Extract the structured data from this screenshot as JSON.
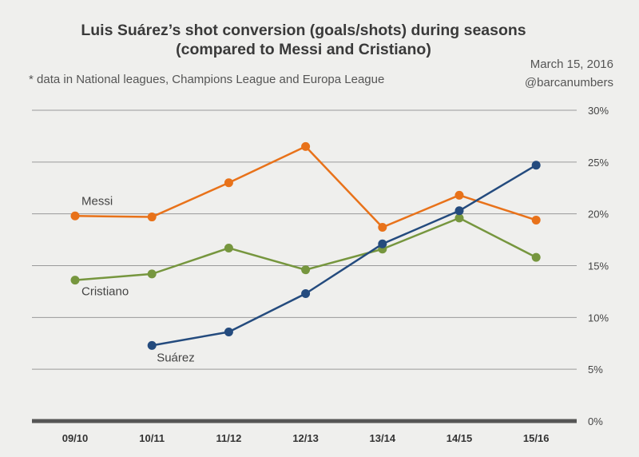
{
  "title_line1": "Luis Suárez’s shot conversion (goals/shots) during seasons",
  "title_line2": "(compared to Messi and Cristiano)",
  "note": "* data in National leagues, Champions League and Europa League",
  "date": "March 15, 2016",
  "handle": "@barcanumbers",
  "colors": {
    "messi": "#e8721a",
    "cristiano": "#76963e",
    "suarez": "#244b7e",
    "grid": "#9a9a9a",
    "baseline": "#555555"
  },
  "chart_data": {
    "type": "line",
    "title": "Luis Suárez’s shot conversion (goals/shots) during seasons (compared to Messi and Cristiano)",
    "categories": [
      "09/10",
      "10/11",
      "11/12",
      "12/13",
      "13/14",
      "14/15",
      "15/16"
    ],
    "ylim": [
      0,
      30
    ],
    "yticks": [
      0,
      5,
      10,
      15,
      20,
      25,
      30
    ],
    "ytick_labels": [
      "0%",
      "5%",
      "10%",
      "15%",
      "20%",
      "25%",
      "30%"
    ],
    "grid": true,
    "series": [
      {
        "name": "Messi",
        "color_key": "messi",
        "values": [
          19.8,
          19.7,
          23.0,
          26.5,
          18.7,
          21.8,
          19.4
        ]
      },
      {
        "name": "Cristiano",
        "color_key": "cristiano",
        "values": [
          13.6,
          14.2,
          16.7,
          14.6,
          16.6,
          19.6,
          15.8
        ]
      },
      {
        "name": "Suárez",
        "color_key": "suarez",
        "values": [
          null,
          7.3,
          8.6,
          12.3,
          17.1,
          20.3,
          24.7
        ]
      }
    ]
  }
}
